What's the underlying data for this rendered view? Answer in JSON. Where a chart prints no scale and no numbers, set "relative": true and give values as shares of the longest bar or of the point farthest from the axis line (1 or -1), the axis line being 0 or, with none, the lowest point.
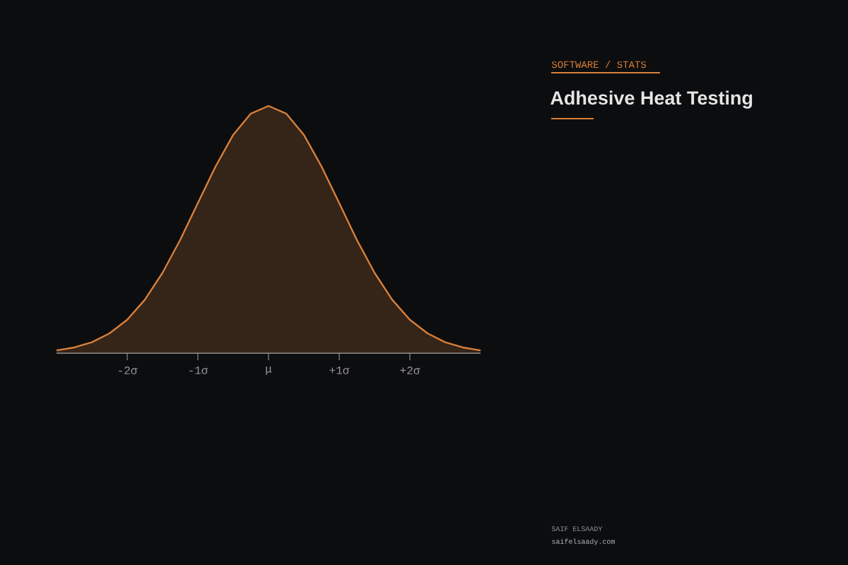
{
  "chart_data": {
    "type": "area",
    "relative": true,
    "subtitle": "SOFTWARE / STATS",
    "title": "Adhesive Heat Testing",
    "annotations": [
      "SAIF ELSAADY",
      "saifelsaady.com"
    ],
    "x": [
      -3,
      -2.75,
      -2.5,
      -2.25,
      -2,
      -1.75,
      -1.5,
      -1.25,
      -1,
      -0.75,
      -0.5,
      -0.25,
      0,
      0.25,
      0.5,
      0.75,
      1,
      1.25,
      1.5,
      1.75,
      2,
      2.25,
      2.5,
      2.75,
      3
    ],
    "values": [
      0.011,
      0.023,
      0.044,
      0.08,
      0.135,
      0.216,
      0.325,
      0.458,
      0.607,
      0.755,
      0.883,
      0.969,
      1,
      0.969,
      0.883,
      0.755,
      0.607,
      0.458,
      0.325,
      0.216,
      0.135,
      0.08,
      0.044,
      0.023,
      0.011
    ],
    "color": "#d9803a",
    "xlim": [
      -3,
      3
    ],
    "xticks": [
      {
        "value": -2,
        "label": "-2σ"
      },
      {
        "value": -1,
        "label": "-1σ"
      },
      {
        "value": 0,
        "label": "μ"
      },
      {
        "value": 1,
        "label": "+1σ"
      },
      {
        "value": 2,
        "label": "+2σ"
      }
    ],
    "grid": false
  }
}
